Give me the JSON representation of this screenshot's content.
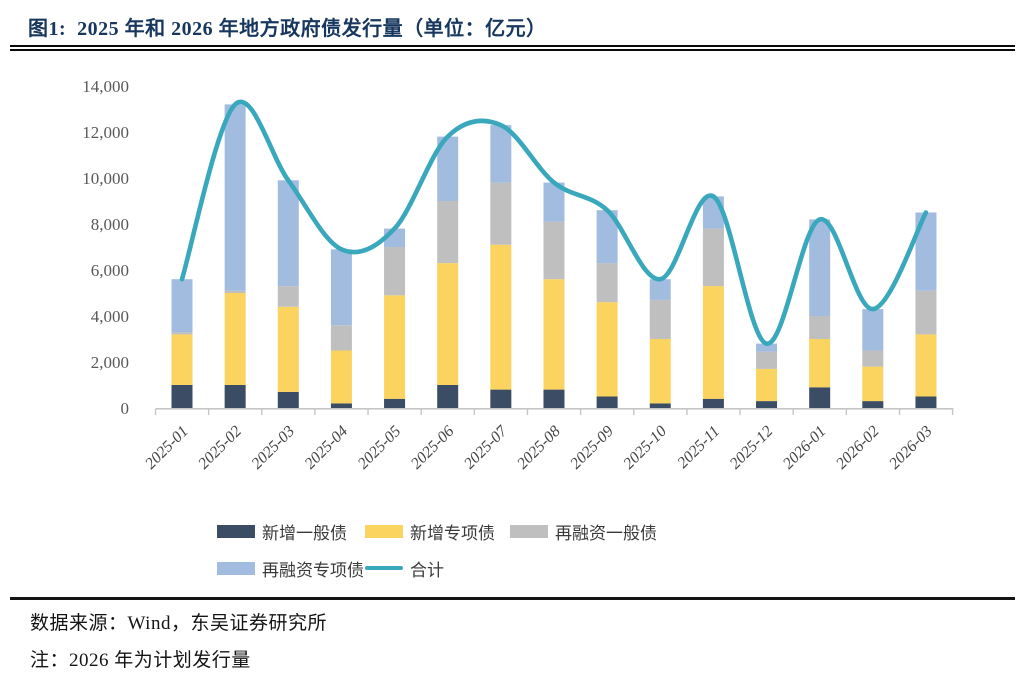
{
  "header": {
    "title": "图1:  2025 年和 2026 年地方政府债发行量（单位：亿元）"
  },
  "footer": {
    "source": "数据来源：Wind，东吴证券研究所",
    "note": "注：2026 年为计划发行量"
  },
  "colors": {
    "title_navy": "#17375E",
    "axis_text": "#595959",
    "xlabel_text": "#444444",
    "axis_line": "#C6C6C6"
  },
  "chart_data": {
    "type": "bar",
    "subtype": "stacked-bars-with-total-line",
    "unit": "亿元",
    "title": "2025 年和 2026 年地方政府债发行量",
    "categories": [
      "2025-01",
      "2025-02",
      "2025-03",
      "2025-04",
      "2025-05",
      "2025-06",
      "2025-07",
      "2025-08",
      "2025-09",
      "2025-10",
      "2025-11",
      "2025-12",
      "2026-01",
      "2026-02",
      "2026-03"
    ],
    "series": [
      {
        "name": "新增一般债",
        "color": "#3A4D64",
        "values": [
          1000,
          1000,
          700,
          200,
          400,
          1000,
          800,
          800,
          500,
          200,
          400,
          300,
          900,
          300,
          500
        ]
      },
      {
        "name": "新增专项债",
        "color": "#FBD35F",
        "values": [
          2200,
          4000,
          3700,
          2300,
          4500,
          5300,
          6300,
          4800,
          4100,
          2800,
          4900,
          1400,
          2100,
          1500,
          2700
        ]
      },
      {
        "name": "再融资一般债",
        "color": "#BFBFBF",
        "values": [
          100,
          100,
          900,
          1100,
          2100,
          2700,
          2700,
          2500,
          1700,
          1700,
          2500,
          750,
          1000,
          700,
          1900
        ]
      },
      {
        "name": "再融资专项债",
        "color": "#A2BCDF",
        "values": [
          2300,
          8100,
          4600,
          3300,
          800,
          2800,
          2500,
          1700,
          2300,
          900,
          1400,
          350,
          4200,
          1800,
          3400
        ]
      }
    ],
    "line": {
      "name": "合计",
      "color": "#3AA8BC",
      "values": [
        5600,
        13200,
        9900,
        6900,
        7800,
        11800,
        12300,
        9800,
        8600,
        5600,
        9200,
        2800,
        8200,
        4300,
        8500
      ]
    },
    "xlabel": "",
    "ylabel": "",
    "ylim": [
      0,
      14000
    ],
    "ytick_step": 2000,
    "grid": false,
    "legend_position": "bottom"
  }
}
